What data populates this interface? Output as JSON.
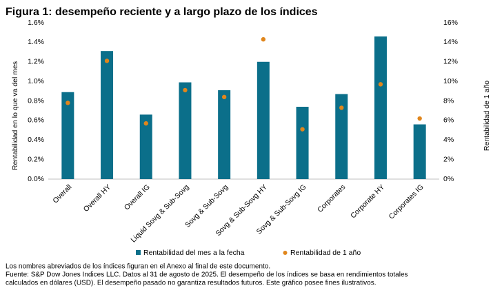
{
  "chart_data": {
    "type": "bar",
    "title": "Figura 1: desempeño reciente y a largo plazo de los índices",
    "ylabel": "Rentabilidad en lo que va del mes",
    "y2label": "Rentabilidad de 1 año",
    "categories": [
      "Overall",
      "Overall HY",
      "Overall IG",
      "Liquid Sovg & Sub-Sovg",
      "Sovg & Sub-Sovg",
      "Sovg & Sub-Sovg HY",
      "Sovg & Sub-Sovg IG",
      "Corporates",
      "Corporate HY",
      "Corporates IG"
    ],
    "series": [
      {
        "name": "Rentabilidad del mes a la fecha",
        "type": "bar",
        "color": "#0b6f8a",
        "values": [
          0.89,
          1.31,
          0.66,
          0.99,
          0.91,
          1.2,
          0.74,
          0.87,
          1.46,
          0.56
        ]
      },
      {
        "name": "Rentabilidad de 1 año",
        "type": "scatter",
        "axis": "y2",
        "color": "#e0861c",
        "values": [
          7.8,
          12.1,
          5.7,
          9.1,
          8.4,
          14.3,
          5.1,
          7.3,
          9.7,
          6.2
        ]
      }
    ],
    "ylim": [
      0,
      1.6
    ],
    "yticks": [
      {
        "value": 0,
        "label": "0.0%"
      },
      {
        "value": 0.2,
        "label": "0.2%"
      },
      {
        "value": 0.4,
        "label": "0.4%"
      },
      {
        "value": 0.6,
        "label": "0.6%"
      },
      {
        "value": 0.8,
        "label": "0.8%"
      },
      {
        "value": 1.0,
        "label": "1.0%"
      },
      {
        "value": 1.2,
        "label": "1.2%"
      },
      {
        "value": 1.4,
        "label": "1.4%"
      },
      {
        "value": 1.6,
        "label": "1.6%"
      }
    ],
    "y2lim": [
      0,
      16
    ],
    "y2ticks": [
      {
        "value": 0,
        "label": "0%"
      },
      {
        "value": 2,
        "label": "2%"
      },
      {
        "value": 4,
        "label": "4%"
      },
      {
        "value": 6,
        "label": "6%"
      },
      {
        "value": 8,
        "label": "8%"
      },
      {
        "value": 10,
        "label": "10%"
      },
      {
        "value": 12,
        "label": "12%"
      },
      {
        "value": 14,
        "label": "14%"
      },
      {
        "value": 16,
        "label": "16%"
      }
    ],
    "grid": false,
    "legend": "bottom",
    "notes": [
      "Los nombres abreviados de los índices figuran en el Anexo al final de este documento.",
      "Fuente: S&P Dow Jones Indices LLC. Datos al 31 de agosto de 2025. El desempeño de los índices se basa en rendimientos totales",
      "calculados en dólares (USD). El desempeño pasado no garantiza resultados futuros. Este gráfico posee fines ilustrativos."
    ]
  }
}
